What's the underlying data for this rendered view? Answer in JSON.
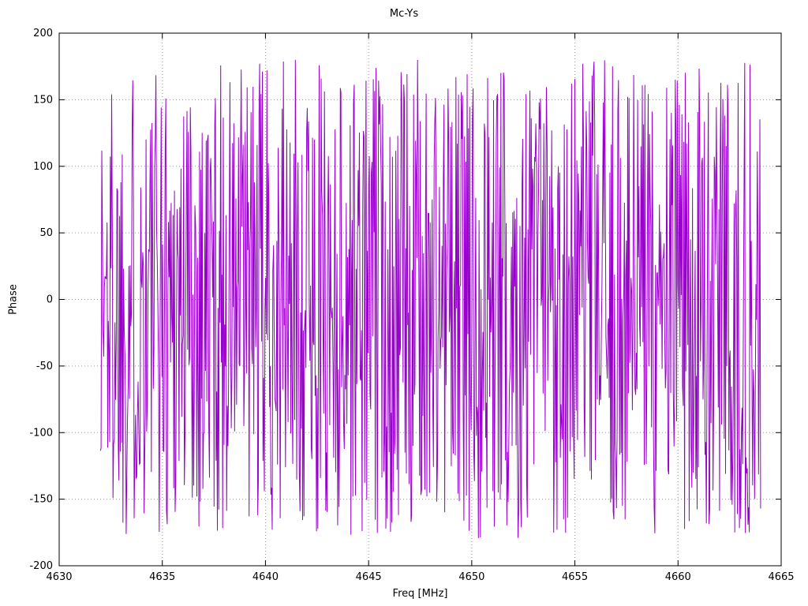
{
  "title": "Mc-Ys",
  "chart_data": {
    "type": "line",
    "title": "Mc-Ys",
    "xlabel": "Freq [MHz]",
    "ylabel": "Phase",
    "xlim": [
      4630,
      4665
    ],
    "ylim": [
      -200,
      200
    ],
    "xticks": [
      4630,
      4635,
      4640,
      4645,
      4650,
      4655,
      4660,
      4665
    ],
    "yticks": [
      -200,
      -150,
      -100,
      -50,
      0,
      50,
      100,
      150,
      200
    ],
    "grid": true,
    "legend_position": "none",
    "series": [
      {
        "name": "phase",
        "color": "#9900cc",
        "x_start": 4632,
        "x_end": 4664,
        "n_points": 1000,
        "y_min": -180,
        "y_max": 180,
        "distribution": "uniform-random-wrapped-phase",
        "seed": 1337
      }
    ]
  }
}
